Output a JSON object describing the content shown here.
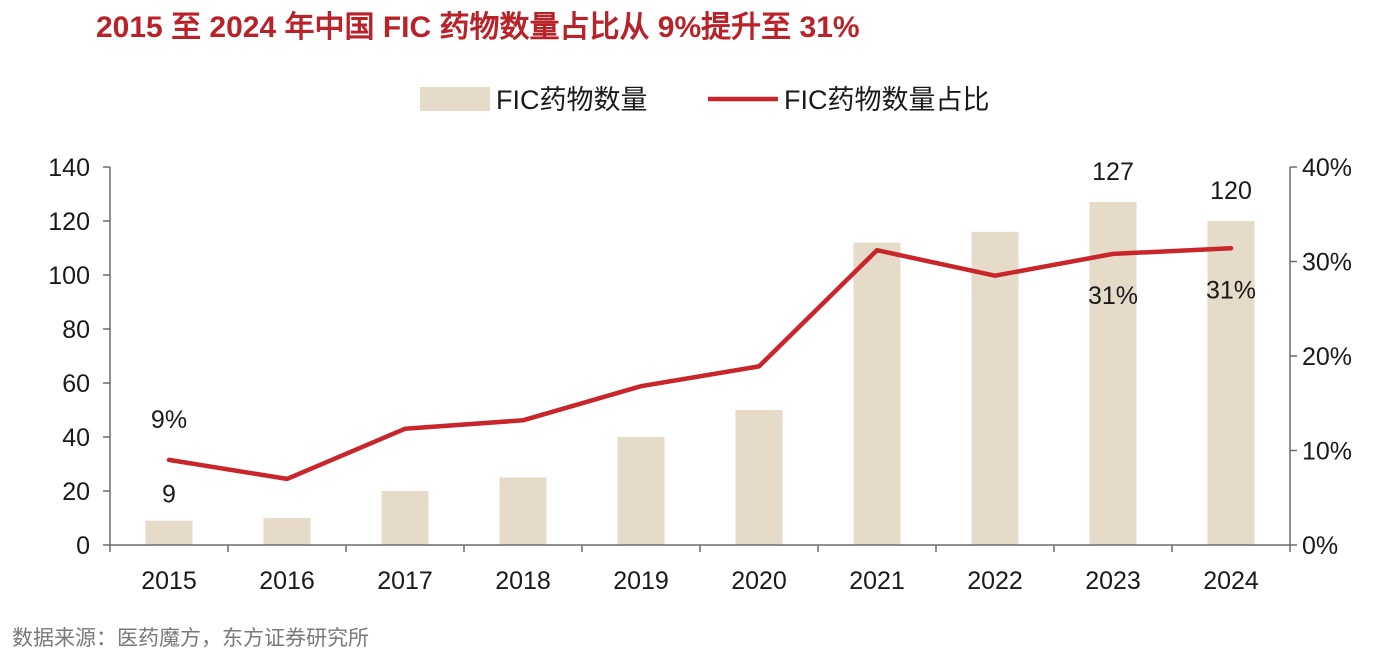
{
  "title": "2015 至 2024 年中国 FIC 药物数量占比从 9%提升至 31%",
  "source": "数据来源：医药魔方，东方证券研究所",
  "colors": {
    "title": "#b8232a",
    "bar": "#e6dac8",
    "line": "#c8262b",
    "axis": "#6b6b6b",
    "source": "#7a7a7a"
  },
  "chart_data": {
    "type": "bar",
    "categories": [
      "2015",
      "2016",
      "2017",
      "2018",
      "2019",
      "2020",
      "2021",
      "2022",
      "2023",
      "2024"
    ],
    "series": [
      {
        "name": "FIC药物数量",
        "type": "bar",
        "axis": "left",
        "values": [
          9,
          10,
          20,
          25,
          40,
          50,
          112,
          116,
          127,
          120
        ]
      },
      {
        "name": "FIC药物数量占比",
        "type": "line",
        "axis": "right",
        "values": [
          9,
          7,
          12.3,
          13.2,
          16.8,
          18.9,
          31.2,
          28.5,
          30.8,
          31.4
        ]
      }
    ],
    "y_left": {
      "min": 0,
      "max": 140,
      "ticks": [
        "0",
        "20",
        "40",
        "60",
        "80",
        "100",
        "120",
        "140"
      ]
    },
    "y_right": {
      "min": 0,
      "max": 40,
      "ticks": [
        "0%",
        "10%",
        "20%",
        "30%",
        "40%"
      ]
    },
    "data_labels": [
      {
        "series": 0,
        "index": 0,
        "text": "9"
      },
      {
        "series": 0,
        "index": 8,
        "text": "127"
      },
      {
        "series": 0,
        "index": 9,
        "text": "120"
      },
      {
        "series": 1,
        "index": 0,
        "text": "9%"
      },
      {
        "series": 1,
        "index": 8,
        "text": "31%"
      },
      {
        "series": 1,
        "index": 9,
        "text": "31%"
      }
    ],
    "legend_position": "top-center",
    "grid": false
  }
}
